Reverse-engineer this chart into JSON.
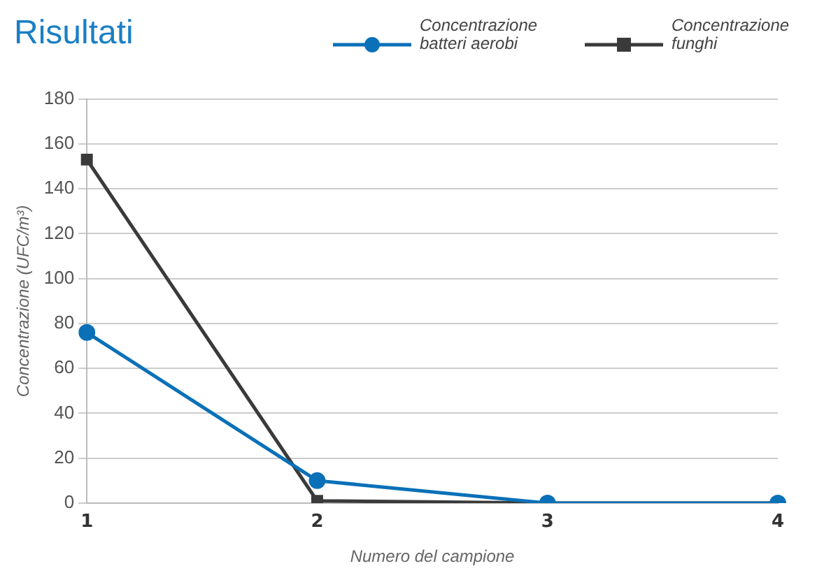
{
  "chart_data": {
    "type": "line",
    "title": "Risultati",
    "xlabel": "Numero del campione",
    "ylabel": "Concentrazione (UFC/m³)",
    "categories": [
      "1",
      "2",
      "3",
      "4"
    ],
    "series": [
      {
        "name": "Concentrazione batteri aerobi",
        "color": "#0a70b8",
        "marker": "circle",
        "values": [
          76,
          10,
          0,
          0
        ]
      },
      {
        "name": "Concentrazione funghi",
        "color": "#3a3a3a",
        "marker": "square",
        "values": [
          153,
          1,
          0,
          0
        ]
      }
    ],
    "ylim": [
      0,
      180
    ],
    "yticks": [
      0,
      20,
      40,
      60,
      80,
      100,
      120,
      140,
      160,
      180
    ],
    "grid": "y",
    "legend": "top right",
    "line_style": "solid"
  }
}
